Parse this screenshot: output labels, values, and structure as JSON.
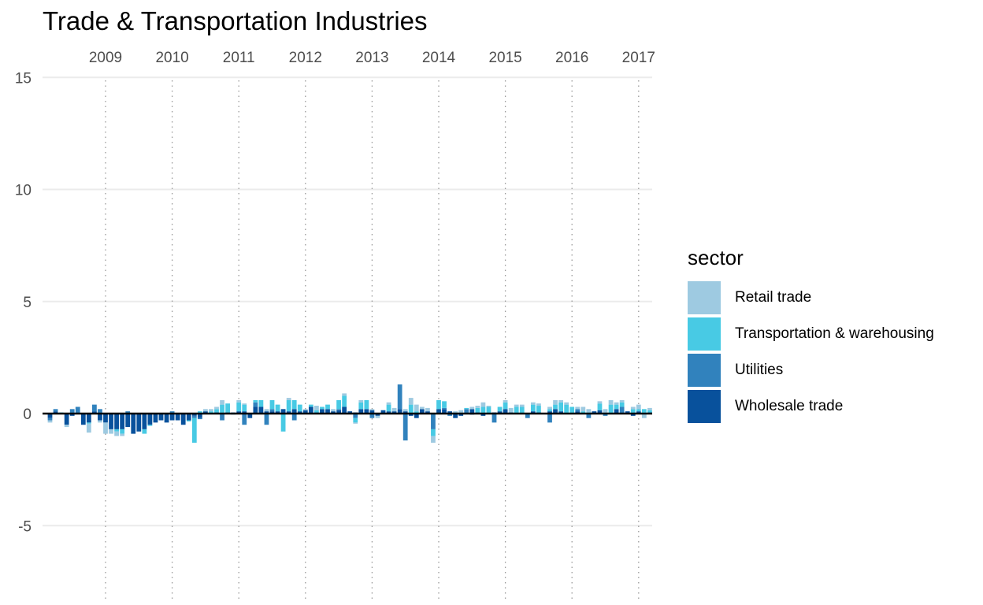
{
  "chart_data": {
    "type": "bar",
    "stacked": true,
    "title": "Trade & Transportation Industries",
    "xlabel": "",
    "ylabel": "",
    "ylim": [
      -8,
      15
    ],
    "yticks": [
      -5,
      0,
      5,
      10,
      15
    ],
    "ytick_labels": [
      "-5",
      "0",
      "5",
      "10",
      "15"
    ],
    "xticks": [
      "2009",
      "2010",
      "2011",
      "2012",
      "2013",
      "2014",
      "2015",
      "2016",
      "2017"
    ],
    "x_axis_position": "top",
    "x_start": "2008-03",
    "grid": true,
    "legend": {
      "title": "sector",
      "position": "right",
      "entries": [
        {
          "name": "Retail trade",
          "color": "#9ecae1"
        },
        {
          "name": "Transportation & warehousing",
          "color": "#48cae4"
        },
        {
          "name": "Utilities",
          "color": "#3182bd"
        },
        {
          "name": "Wholesale trade",
          "color": "#08519c"
        }
      ]
    },
    "series": [
      {
        "name": "Wholesale trade",
        "color": "#08519c",
        "values": [
          -0.2,
          0.1,
          0.0,
          -0.5,
          -0.1,
          0.0,
          -0.5,
          -0.4,
          0.1,
          -0.3,
          -0.4,
          -0.7,
          -0.7,
          -0.7,
          -0.6,
          -0.9,
          -0.8,
          -0.7,
          -0.5,
          -0.4,
          -0.3,
          -0.4,
          -0.3,
          -0.3,
          -0.5,
          -0.3,
          -0.1,
          -0.2,
          0.1,
          0.0,
          0.05,
          0.0,
          0.05,
          0.0,
          0.1,
          0.1,
          -0.2,
          0.3,
          0.3,
          0.1,
          0.1,
          0.1,
          0.2,
          0.1,
          0.2,
          0.1,
          0.15,
          0.3,
          0.05,
          0.2,
          0.2,
          0.1,
          0.15,
          0.3,
          0.1,
          0.05,
          0.2,
          0.2,
          0.15,
          -0.1,
          0.15,
          0.1,
          0.1,
          0.2,
          0.1,
          -0.1,
          -0.2,
          0.2,
          0.1,
          0.0,
          0.2,
          0.2,
          0.1,
          -0.2,
          -0.1,
          0.0,
          0.2,
          0.05,
          -0.1,
          0.0,
          0.05,
          0.1,
          0.2,
          0.05,
          0.0,
          0.0,
          0.0,
          0.1,
          0.05,
          0.0,
          0.1,
          0.2,
          0.1,
          0.0,
          0.0,
          0.1,
          0.0,
          0.0,
          0.1,
          0.15,
          0.0,
          0.0,
          0.2,
          0.0,
          0.1,
          -0.1,
          0.1,
          0.0,
          0.05
        ]
      },
      {
        "name": "Utilities",
        "color": "#3182bd",
        "values": [
          -0.1,
          0.1,
          0.0,
          0.0,
          0.2,
          0.3,
          0.0,
          0.0,
          0.3,
          0.2,
          0.0,
          0.0,
          0.0,
          0.0,
          0.1,
          0.0,
          0.0,
          0.0,
          0.0,
          0.0,
          0.0,
          0.0,
          0.1,
          0.0,
          0.0,
          0.0,
          -0.1,
          -0.05,
          0.0,
          0.0,
          0.0,
          -0.3,
          0.0,
          0.05,
          0.0,
          -0.5,
          0.0,
          0.2,
          0.0,
          -0.5,
          0.1,
          0.0,
          0.0,
          0.0,
          -0.3,
          0.0,
          0.0,
          0.0,
          0.0,
          0.0,
          0.0,
          0.0,
          0.05,
          0.0,
          0.0,
          -0.2,
          0.0,
          0.0,
          -0.2,
          0.0,
          0.0,
          0.0,
          0.0,
          1.1,
          -1.2,
          0.0,
          0.0,
          0.0,
          0.0,
          -0.7,
          0.0,
          0.05,
          -0.1,
          0.0,
          0.0,
          0.2,
          -0.05,
          0.0,
          0.0,
          0.0,
          -0.4,
          0.0,
          0.0,
          0.0,
          0.0,
          0.0,
          -0.2,
          0.0,
          0.0,
          0.0,
          -0.4,
          0.0,
          0.0,
          0.0,
          0.0,
          0.1,
          0.0,
          -0.2,
          0.0,
          0.0,
          -0.1,
          0.0,
          0.0,
          0.3,
          0.0,
          0.0,
          0.0,
          0.0,
          0.0
        ]
      },
      {
        "name": "Transportation & warehousing",
        "color": "#48cae4",
        "values": [
          0.0,
          0.0,
          0.05,
          0.0,
          0.0,
          0.0,
          0.0,
          -0.05,
          0.0,
          0.0,
          0.0,
          0.0,
          -0.1,
          -0.2,
          0.0,
          0.0,
          0.0,
          -0.2,
          -0.05,
          0.0,
          0.0,
          0.0,
          0.0,
          0.0,
          0.0,
          -0.05,
          -1.1,
          0.1,
          0.0,
          0.1,
          0.15,
          0.4,
          0.4,
          0.0,
          0.4,
          0.3,
          0.0,
          0.1,
          0.3,
          0.0,
          0.4,
          0.3,
          -0.8,
          0.5,
          0.4,
          0.3,
          0.0,
          0.1,
          0.1,
          0.1,
          0.2,
          0.0,
          0.4,
          0.5,
          0.0,
          -0.2,
          0.3,
          0.4,
          0.0,
          0.0,
          0.0,
          0.3,
          0.0,
          0.0,
          0.0,
          0.4,
          0.1,
          0.0,
          0.0,
          -0.3,
          0.4,
          0.3,
          0.0,
          0.0,
          0.0,
          0.05,
          0.0,
          0.2,
          0.3,
          0.3,
          0.0,
          0.2,
          0.3,
          0.0,
          0.3,
          0.3,
          0.0,
          0.3,
          0.3,
          0.0,
          0.1,
          0.2,
          0.4,
          0.4,
          0.3,
          0.0,
          0.1,
          0.05,
          0.0,
          0.3,
          0.0,
          0.4,
          0.2,
          0.2,
          0.0,
          0.2,
          0.1,
          0.2,
          0.1
        ]
      },
      {
        "name": "Retail trade",
        "color": "#9ecae1",
        "values": [
          -0.1,
          0.0,
          0.0,
          -0.1,
          0.0,
          0.0,
          0.0,
          -0.4,
          0.0,
          -0.1,
          -0.5,
          -0.2,
          -0.2,
          -0.1,
          0.0,
          0.0,
          0.0,
          0.0,
          0.0,
          0.0,
          0.0,
          0.0,
          0.0,
          0.0,
          0.0,
          0.0,
          0.0,
          0.0,
          0.1,
          0.1,
          0.1,
          0.2,
          0.0,
          -0.05,
          0.1,
          0.05,
          0.0,
          0.0,
          0.0,
          0.1,
          0.0,
          0.0,
          0.0,
          0.1,
          0.0,
          0.0,
          0.05,
          0.0,
          0.2,
          0.0,
          0.0,
          0.1,
          0.0,
          0.1,
          0.0,
          -0.05,
          0.1,
          0.0,
          0.05,
          -0.1,
          0.0,
          0.1,
          0.15,
          0.0,
          0.1,
          0.3,
          0.3,
          0.1,
          0.15,
          -0.3,
          0.0,
          0.0,
          0.0,
          0.1,
          0.15,
          0.0,
          0.1,
          0.1,
          0.2,
          0.05,
          0.0,
          0.0,
          0.1,
          0.2,
          0.1,
          0.1,
          0.0,
          0.1,
          0.1,
          0.0,
          0.1,
          0.2,
          0.1,
          0.1,
          0.0,
          0.1,
          0.2,
          0.15,
          0.0,
          0.1,
          0.2,
          0.2,
          0.1,
          0.1,
          0.0,
          0.1,
          0.2,
          -0.2,
          0.1
        ]
      }
    ]
  }
}
